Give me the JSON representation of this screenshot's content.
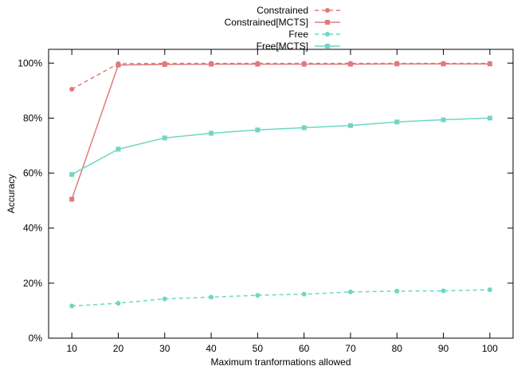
{
  "chart_data": {
    "type": "line",
    "xlabel": "Maximum tranformations allowed",
    "ylabel": "Accuracy",
    "x": [
      10,
      20,
      30,
      40,
      50,
      60,
      70,
      80,
      90,
      100
    ],
    "xlim": [
      5,
      105
    ],
    "ylim": [
      0,
      105
    ],
    "y_ticks": [
      0,
      20,
      40,
      60,
      80,
      100
    ],
    "y_tick_labels": [
      "0%",
      "20%",
      "40%",
      "60%",
      "80%",
      "100%"
    ],
    "x_tick_labels": [
      "10",
      "20",
      "30",
      "40",
      "50",
      "60",
      "70",
      "80",
      "90",
      "100"
    ],
    "grid": false,
    "legend_position": "top-center",
    "series": [
      {
        "name": "Constrained",
        "color": "#e07a7a",
        "dash": true,
        "marker": "circle",
        "values": [
          90.5,
          99.8,
          99.9,
          99.9,
          99.9,
          99.9,
          99.9,
          99.9,
          99.9,
          99.9
        ]
      },
      {
        "name": "Constrained[MCTS]",
        "color": "#e07a7a",
        "dash": false,
        "marker": "square",
        "values": [
          50.5,
          99.3,
          99.5,
          99.6,
          99.6,
          99.6,
          99.6,
          99.7,
          99.7,
          99.7
        ]
      },
      {
        "name": "Free",
        "color": "#6fd6c4",
        "dash": true,
        "marker": "circle",
        "values": [
          11.7,
          12.7,
          14.3,
          14.9,
          15.6,
          16.0,
          16.8,
          17.1,
          17.2,
          17.6
        ]
      },
      {
        "name": "Free[MCTS]",
        "color": "#6fd6c4",
        "dash": false,
        "marker": "square",
        "values": [
          59.5,
          68.7,
          72.8,
          74.5,
          75.7,
          76.5,
          77.3,
          78.6,
          79.4,
          80.0
        ]
      }
    ]
  }
}
